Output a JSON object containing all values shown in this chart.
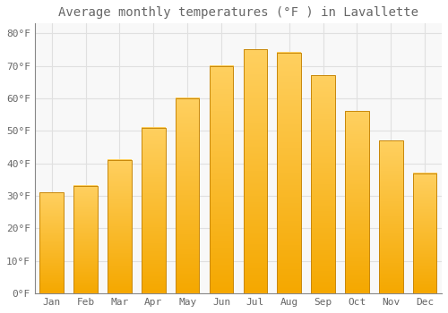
{
  "title": "Average monthly temperatures (°F ) in Lavallette",
  "months": [
    "Jan",
    "Feb",
    "Mar",
    "Apr",
    "May",
    "Jun",
    "Jul",
    "Aug",
    "Sep",
    "Oct",
    "Nov",
    "Dec"
  ],
  "values": [
    31,
    33,
    41,
    51,
    60,
    70,
    75,
    74,
    67,
    56,
    47,
    37
  ],
  "bar_color_bottom": "#F5A800",
  "bar_color_top": "#FFD060",
  "bar_edge_color": "#C8870A",
  "background_color": "#FFFFFF",
  "plot_bg_color": "#F8F8F8",
  "grid_color": "#E0E0E0",
  "ylim": [
    0,
    83
  ],
  "yticks": [
    0,
    10,
    20,
    30,
    40,
    50,
    60,
    70,
    80
  ],
  "ytick_labels": [
    "0°F",
    "10°F",
    "20°F",
    "30°F",
    "40°F",
    "50°F",
    "60°F",
    "70°F",
    "80°F"
  ],
  "title_fontsize": 10,
  "tick_fontsize": 8,
  "font_color": "#666666",
  "bar_width": 0.7
}
